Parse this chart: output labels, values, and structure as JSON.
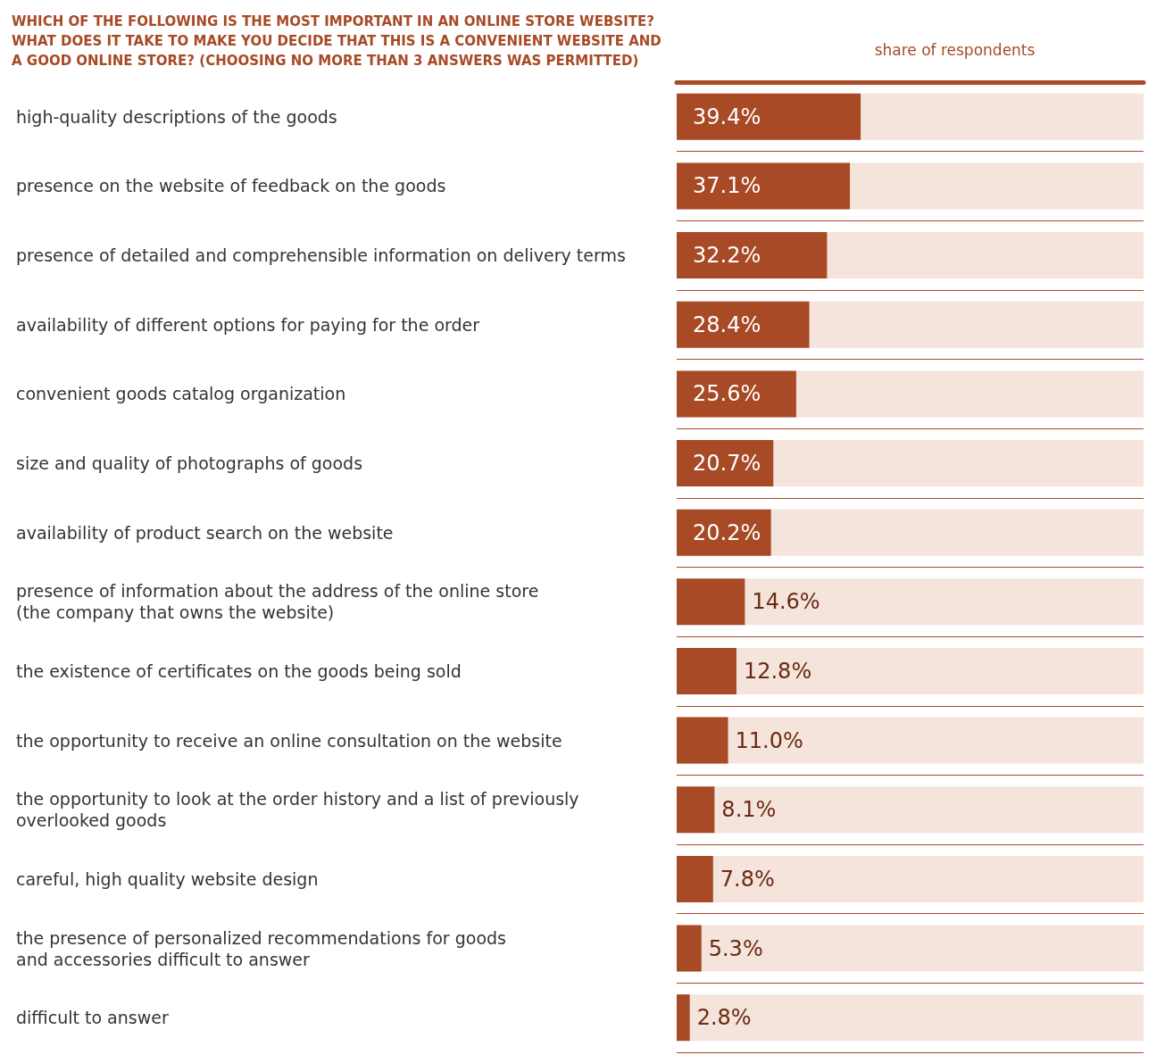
{
  "chart_data": {
    "type": "bar",
    "orientation": "horizontal",
    "title": "WHICH OF THE FOLLOWING IS THE MOST IMPORTANT IN AN ONLINE STORE WEBSITE?\nWHAT DOES IT TAKE TO MAKE YOU DECIDE THAT THIS IS A CONVENIENT WEBSITE AND\nA GOOD ONLINE STORE? (CHOOSING NO MORE THAN 3 ANSWERS WAS PERMITTED)",
    "xlabel": "share of respondents",
    "categories": [
      "high-quality descriptions of the goods",
      "presence on the website of feedback on the goods",
      "presence of detailed and comprehensible information on delivery terms",
      "availability of different options for paying for the order",
      "convenient goods catalog organization",
      "size and quality of photographs of goods",
      "availability of product search on the website",
      "presence of information about the address of the online store\n(the company that owns the website)",
      "the existence of certificates on the goods being sold",
      "the opportunity to receive an online consultation on the website",
      "the opportunity to look at the order history and a list of previously\noverlooked goods",
      "careful, high quality website design",
      "the presence of personalized recommendations for goods\nand accessories difficult to answer",
      "difficult to answer"
    ],
    "values": [
      39.4,
      37.1,
      32.2,
      28.4,
      25.6,
      20.7,
      20.2,
      14.6,
      12.8,
      11.0,
      8.1,
      7.8,
      5.3,
      2.8
    ],
    "value_labels": [
      "39.4%",
      "37.1%",
      "32.2%",
      "28.4%",
      "25.6%",
      "20.7%",
      "20.2%",
      "14.6%",
      "12.8%",
      "11.0%",
      "8.1%",
      "7.8%",
      "5.3%",
      "2.8%"
    ],
    "color": "#a84a26",
    "xlim": [
      0,
      100
    ],
    "tick_labels": "y",
    "grid": "y"
  }
}
